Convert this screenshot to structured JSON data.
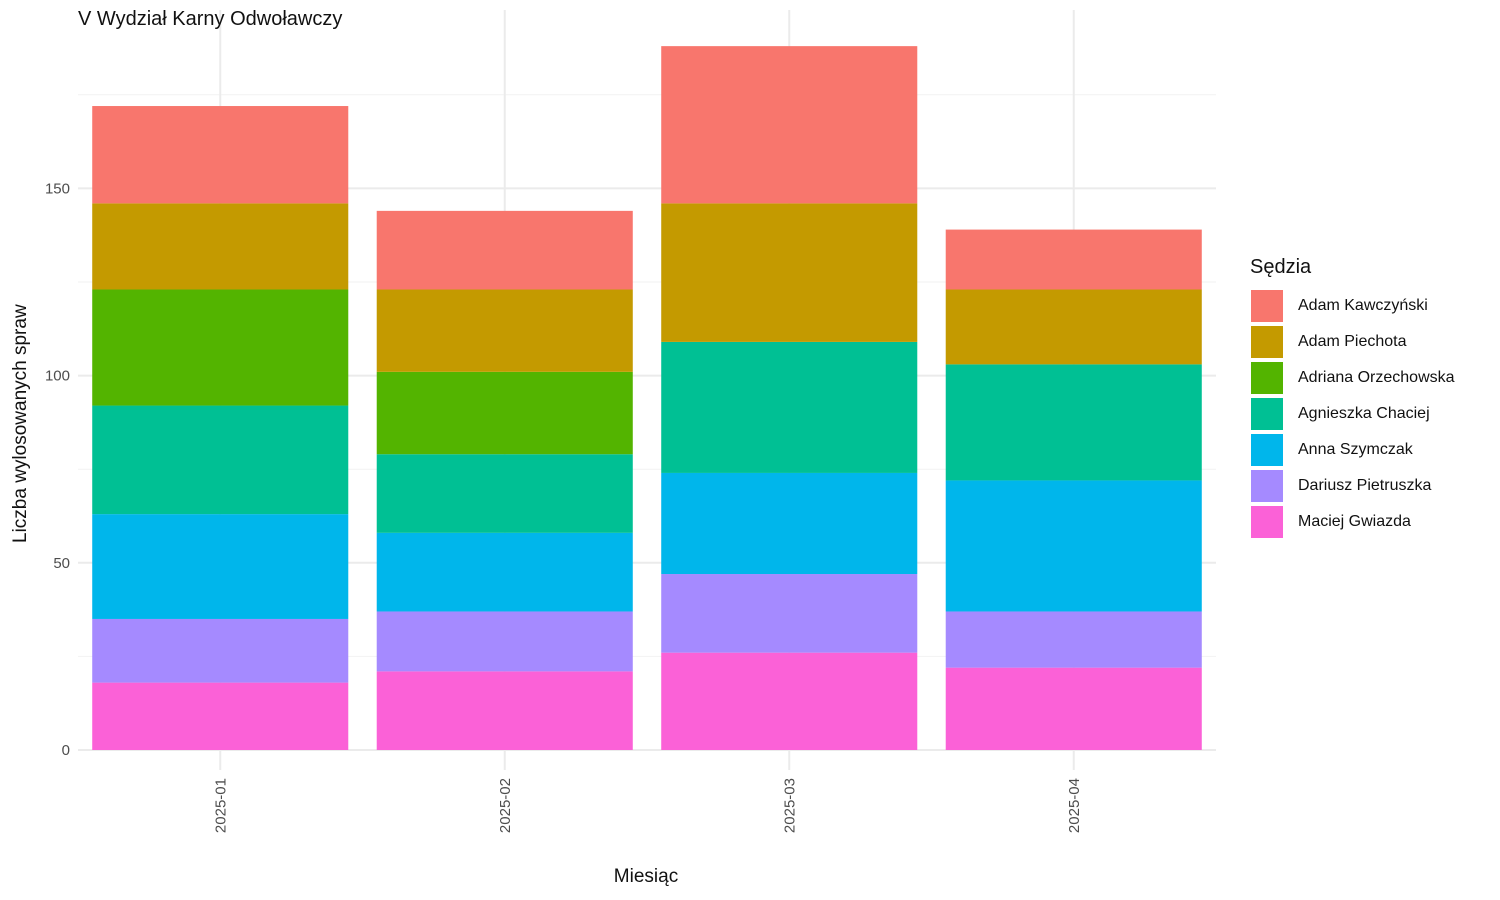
{
  "chart_data": {
    "type": "bar",
    "stacked": true,
    "title": "V Wydział Karny Odwoławczy",
    "xlabel": "Miesiąc",
    "ylabel": "Liczba wylosowanych spraw",
    "legend_title": "Sędzia",
    "legend_position": "right",
    "grid": true,
    "ylim": [
      0,
      197
    ],
    "yticks": [
      0,
      50,
      100,
      150
    ],
    "categories": [
      "2025-01",
      "2025-02",
      "2025-03",
      "2025-04"
    ],
    "series": [
      {
        "name": "Adam Kawczyński",
        "color": "#F8766D",
        "values": [
          26,
          21,
          42,
          16
        ]
      },
      {
        "name": "Adam Piechota",
        "color": "#C49A00",
        "values": [
          23,
          22,
          37,
          20
        ]
      },
      {
        "name": "Adriana Orzechowska",
        "color": "#53B400",
        "values": [
          31,
          22,
          0,
          0
        ]
      },
      {
        "name": "Agnieszka Chaciej",
        "color": "#00C094",
        "values": [
          29,
          21,
          35,
          31
        ]
      },
      {
        "name": "Anna Szymczak",
        "color": "#00B6EB",
        "values": [
          28,
          21,
          27,
          35
        ]
      },
      {
        "name": "Dariusz Pietruszka",
        "color": "#A58AFF",
        "values": [
          17,
          16,
          21,
          15
        ]
      },
      {
        "name": "Maciej Gwiazda",
        "color": "#FB61D7",
        "values": [
          18,
          21,
          26,
          22
        ]
      }
    ]
  }
}
